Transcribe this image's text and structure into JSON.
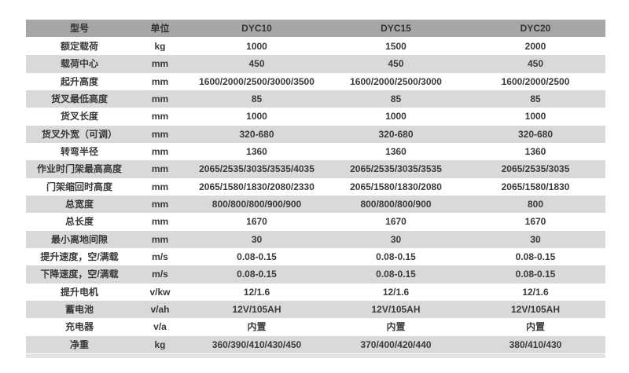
{
  "table": {
    "header": {
      "model_label": "型号",
      "unit_label": "单位",
      "models": [
        "DYC10",
        "DYC15",
        "DYC20"
      ]
    },
    "rows": [
      {
        "label": "额定载荷",
        "unit": "kg",
        "values": [
          "1000",
          "1500",
          "2000"
        ]
      },
      {
        "label": "载荷中心",
        "unit": "mm",
        "values": [
          "450",
          "450",
          "450"
        ]
      },
      {
        "label": "起升高度",
        "unit": "mm",
        "values": [
          "1600/2000/2500/3000/3500",
          "1600/2000/2500/3000",
          "1600/2000/2500"
        ]
      },
      {
        "label": "货叉最低高度",
        "unit": "mm",
        "values": [
          "85",
          "85",
          "85"
        ]
      },
      {
        "label": "货叉长度",
        "unit": "mm",
        "values": [
          "1000",
          "1000",
          "1000"
        ]
      },
      {
        "label": "货叉外宽（可调）",
        "unit": "mm",
        "values": [
          "320-680",
          "320-680",
          "320-680"
        ]
      },
      {
        "label": "转弯半径",
        "unit": "mm",
        "values": [
          "1360",
          "1360",
          "1360"
        ]
      },
      {
        "label": "作业时门架最高高度",
        "unit": "mm",
        "values": [
          "2065/2535/3035/3535/4035",
          "2065/2535/3035/3535",
          "2065/2535/3035"
        ]
      },
      {
        "label": "门架缩回时高度",
        "unit": "mm",
        "values": [
          "2065/1580/1830/2080/2330",
          "2065/1580/1830/2080",
          "2065/1580/1830"
        ]
      },
      {
        "label": "总宽度",
        "unit": "mm",
        "values": [
          "800/800/800/900/900",
          "800/800/800/900",
          "800"
        ]
      },
      {
        "label": "总长度",
        "unit": "mm",
        "values": [
          "1670",
          "1670",
          "1670"
        ]
      },
      {
        "label": "最小离地间隙",
        "unit": "mm",
        "values": [
          "30",
          "30",
          "30"
        ]
      },
      {
        "label": "提升速度，空/满载",
        "unit": "m/s",
        "values": [
          "0.08-0.15",
          "0.08-0.15",
          "0.08-0.15"
        ]
      },
      {
        "label": "下降速度，空/满载",
        "unit": "m/s",
        "values": [
          "0.08-0.15",
          "0.08-0.15",
          "0.08-0.15"
        ]
      },
      {
        "label": "提升电机",
        "unit": "v/kw",
        "values": [
          "12/1.6",
          "12/1.6",
          "12/1.6"
        ]
      },
      {
        "label": "蓄电池",
        "unit": "v/ah",
        "values": [
          "12V/105AH",
          "12V/105AH",
          "12V/105AH"
        ]
      },
      {
        "label": "充电器",
        "unit": "v/a",
        "values": [
          "内置",
          "内置",
          "内置"
        ]
      },
      {
        "label": "净重",
        "unit": "kg",
        "values": [
          "360/390/410/430/450",
          "370/400/420/440",
          "380/410/430"
        ]
      }
    ],
    "colors": {
      "header_bg": "#a6a6a6",
      "stripe_bg": "#d9d9d9",
      "row_bg": "#ffffff",
      "text": "#3a3a3a"
    }
  }
}
